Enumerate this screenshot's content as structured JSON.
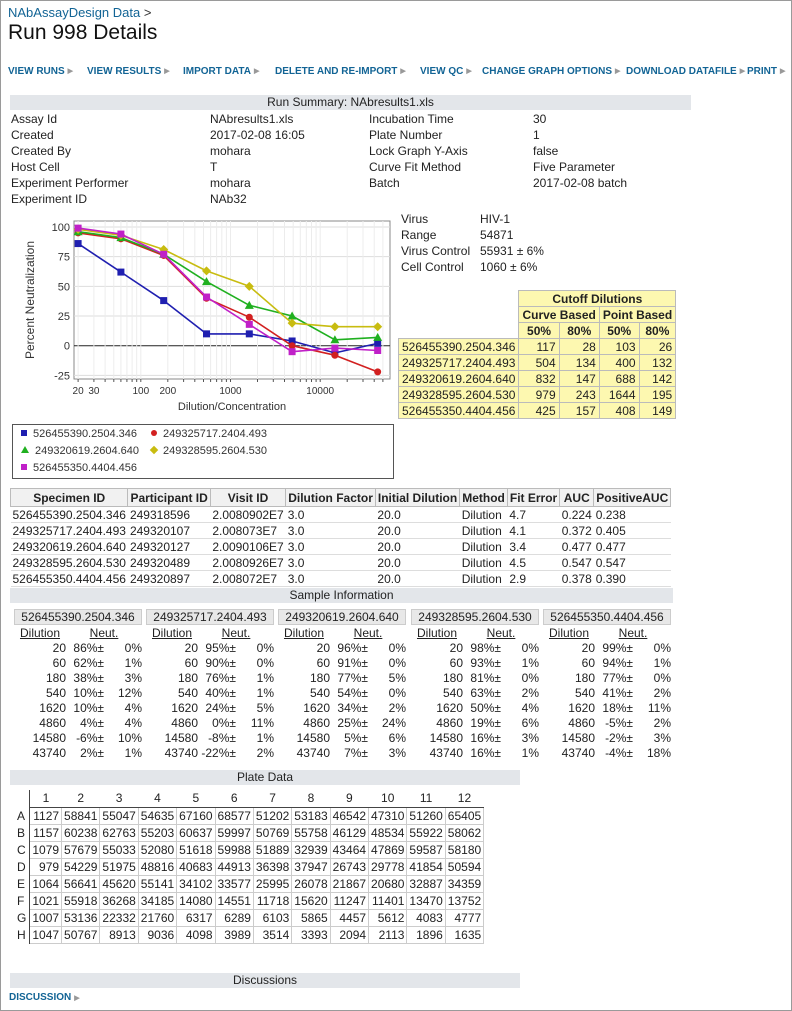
{
  "breadcrumb": {
    "link": "NAbAssayDesign Data",
    "sep": ">"
  },
  "page_title": "Run 998 Details",
  "menu": [
    "VIEW RUNS",
    "VIEW RESULTS",
    "IMPORT DATA",
    "DELETE AND RE-IMPORT",
    "VIEW QC",
    "CHANGE GRAPH OPTIONS",
    "DOWNLOAD DATAFILE",
    "PRINT"
  ],
  "run_summary": {
    "title": "Run Summary: NAbresults1.xls",
    "left": [
      {
        "label": "Assay Id",
        "value": "NAbresults1.xls"
      },
      {
        "label": "Created",
        "value": "2017-02-08 16:05"
      },
      {
        "label": "Created By",
        "value": "mohara"
      },
      {
        "label": "Host Cell",
        "value": "T"
      },
      {
        "label": "Experiment Performer",
        "value": "mohara"
      },
      {
        "label": "Experiment ID",
        "value": "NAb32"
      }
    ],
    "right": [
      {
        "label": "Incubation Time",
        "value": "30"
      },
      {
        "label": "Plate Number",
        "value": "1"
      },
      {
        "label": "Lock Graph Y-Axis",
        "value": "false"
      },
      {
        "label": "Curve Fit Method",
        "value": "Five Parameter"
      },
      {
        "label": "Batch",
        "value": "2017-02-08 batch"
      }
    ]
  },
  "virus_info": [
    {
      "label": "Virus",
      "value": "HIV-1"
    },
    {
      "label": "Range",
      "value": "54871"
    },
    {
      "label": "Virus Control",
      "value": "55931 ± 6%"
    },
    {
      "label": "Cell Control",
      "value": "1060 ± 6%"
    }
  ],
  "chart_data": {
    "type": "scatter",
    "xlabel": "Dilution/Concentration",
    "ylabel": "Percent Neutralization",
    "x_scale": "log",
    "xlim": [
      18,
      60000
    ],
    "ylim": [
      -28,
      105
    ],
    "x_ticks": [
      "20",
      "30",
      "100",
      "200",
      "1000",
      "10000"
    ],
    "y_ticks": [
      "100",
      "75",
      "50",
      "25",
      "0",
      "-25"
    ],
    "grid": true,
    "legend_position": "bottom",
    "x": [
      20,
      60,
      180,
      540,
      1620,
      4860,
      14580,
      43740
    ],
    "series": [
      {
        "name": "526455390.2504.346",
        "color": "#1f1fb0",
        "marker": "square",
        "values": [
          86,
          62,
          38,
          10,
          10,
          4,
          -6,
          2
        ]
      },
      {
        "name": "249325717.2404.493",
        "color": "#d22020",
        "marker": "circle",
        "values": [
          95,
          90,
          76,
          40,
          24,
          0,
          -8,
          -22
        ]
      },
      {
        "name": "249320619.2604.640",
        "color": "#20b020",
        "marker": "triangle",
        "values": [
          96,
          91,
          77,
          54,
          34,
          25,
          5,
          7
        ]
      },
      {
        "name": "249328595.2604.530",
        "color": "#c8bc10",
        "marker": "diamond",
        "values": [
          98,
          93,
          81,
          63,
          50,
          19,
          16,
          16
        ]
      },
      {
        "name": "526455350.4404.456",
        "color": "#c020c8",
        "marker": "square",
        "values": [
          99,
          94,
          77,
          41,
          18,
          -5,
          -2,
          -4
        ]
      }
    ]
  },
  "cutoff": {
    "title": "Cutoff Dilutions",
    "groups": [
      "Curve Based",
      "Point Based"
    ],
    "cols": [
      "50%",
      "80%",
      "50%",
      "80%"
    ],
    "rows": [
      {
        "id": "526455390.2504.346",
        "vals": [
          "117",
          "28",
          "103",
          "26"
        ]
      },
      {
        "id": "249325717.2404.493",
        "vals": [
          "504",
          "134",
          "400",
          "132"
        ]
      },
      {
        "id": "249320619.2604.640",
        "vals": [
          "832",
          "147",
          "688",
          "142"
        ]
      },
      {
        "id": "249328595.2604.530",
        "vals": [
          "979",
          "243",
          "1644",
          "195"
        ]
      },
      {
        "id": "526455350.4404.456",
        "vals": [
          "425",
          "157",
          "408",
          "149"
        ]
      }
    ]
  },
  "results": {
    "headers": [
      "Specimen ID",
      "Participant ID",
      "Visit ID",
      "Dilution Factor",
      "Initial Dilution",
      "Method",
      "Fit Error",
      "AUC",
      "PositiveAUC"
    ],
    "rows": [
      [
        "526455390.2504.346",
        "249318596",
        "2.0080902E7",
        "3.0",
        "20.0",
        "Dilution",
        "4.7",
        "0.224",
        "0.238"
      ],
      [
        "249325717.2404.493",
        "249320107",
        "2.008073E7",
        "3.0",
        "20.0",
        "Dilution",
        "4.1",
        "0.372",
        "0.405"
      ],
      [
        "249320619.2604.640",
        "249320127",
        "2.0090106E7",
        "3.0",
        "20.0",
        "Dilution",
        "3.4",
        "0.477",
        "0.477"
      ],
      [
        "249328595.2604.530",
        "249320489",
        "2.0080926E7",
        "3.0",
        "20.0",
        "Dilution",
        "4.5",
        "0.547",
        "0.547"
      ],
      [
        "526455350.4404.456",
        "249320897",
        "2.008072E7",
        "3.0",
        "20.0",
        "Dilution",
        "2.9",
        "0.378",
        "0.390"
      ]
    ]
  },
  "sample_info": {
    "title": "Sample Information",
    "dil_header": "Dilution",
    "neut_header": "Neut.",
    "samples": [
      {
        "id": "526455390.2504.346",
        "rows": [
          [
            "20",
            "86%±",
            "0%"
          ],
          [
            "60",
            "62%±",
            "1%"
          ],
          [
            "180",
            "38%±",
            "3%"
          ],
          [
            "540",
            "10%±",
            "12%"
          ],
          [
            "1620",
            "10%±",
            "4%"
          ],
          [
            "4860",
            "4%±",
            "4%"
          ],
          [
            "14580",
            "-6%±",
            "10%"
          ],
          [
            "43740",
            "2%±",
            "1%"
          ]
        ]
      },
      {
        "id": "249325717.2404.493",
        "rows": [
          [
            "20",
            "95%±",
            "0%"
          ],
          [
            "60",
            "90%±",
            "0%"
          ],
          [
            "180",
            "76%±",
            "1%"
          ],
          [
            "540",
            "40%±",
            "1%"
          ],
          [
            "1620",
            "24%±",
            "5%"
          ],
          [
            "4860",
            "0%±",
            "11%"
          ],
          [
            "14580",
            "-8%±",
            "1%"
          ],
          [
            "43740",
            "-22%±",
            "2%"
          ]
        ]
      },
      {
        "id": "249320619.2604.640",
        "rows": [
          [
            "20",
            "96%±",
            "0%"
          ],
          [
            "60",
            "91%±",
            "0%"
          ],
          [
            "180",
            "77%±",
            "5%"
          ],
          [
            "540",
            "54%±",
            "0%"
          ],
          [
            "1620",
            "34%±",
            "2%"
          ],
          [
            "4860",
            "25%±",
            "24%"
          ],
          [
            "14580",
            "5%±",
            "6%"
          ],
          [
            "43740",
            "7%±",
            "3%"
          ]
        ]
      },
      {
        "id": "249328595.2604.530",
        "rows": [
          [
            "20",
            "98%±",
            "0%"
          ],
          [
            "60",
            "93%±",
            "1%"
          ],
          [
            "180",
            "81%±",
            "0%"
          ],
          [
            "540",
            "63%±",
            "2%"
          ],
          [
            "1620",
            "50%±",
            "4%"
          ],
          [
            "4860",
            "19%±",
            "6%"
          ],
          [
            "14580",
            "16%±",
            "3%"
          ],
          [
            "43740",
            "16%±",
            "1%"
          ]
        ]
      },
      {
        "id": "526455350.4404.456",
        "rows": [
          [
            "20",
            "99%±",
            "0%"
          ],
          [
            "60",
            "94%±",
            "1%"
          ],
          [
            "180",
            "77%±",
            "0%"
          ],
          [
            "540",
            "41%±",
            "2%"
          ],
          [
            "1620",
            "18%±",
            "11%"
          ],
          [
            "4860",
            "-5%±",
            "2%"
          ],
          [
            "14580",
            "-2%±",
            "3%"
          ],
          [
            "43740",
            "-4%±",
            "18%"
          ]
        ]
      }
    ]
  },
  "plate": {
    "title": "Plate Data",
    "cols": [
      "1",
      "2",
      "3",
      "4",
      "5",
      "6",
      "7",
      "8",
      "9",
      "10",
      "11",
      "12"
    ],
    "rows": [
      {
        "r": "A",
        "v": [
          "1127",
          "58841",
          "55047",
          "54635",
          "67160",
          "68577",
          "51202",
          "53183",
          "46542",
          "47310",
          "51260",
          "65405"
        ]
      },
      {
        "r": "B",
        "v": [
          "1157",
          "60238",
          "62763",
          "55203",
          "60637",
          "59997",
          "50769",
          "55758",
          "46129",
          "48534",
          "55922",
          "58062"
        ]
      },
      {
        "r": "C",
        "v": [
          "1079",
          "57679",
          "55033",
          "52080",
          "51618",
          "59988",
          "51889",
          "32939",
          "43464",
          "47869",
          "59587",
          "58180"
        ]
      },
      {
        "r": "D",
        "v": [
          "979",
          "54229",
          "51975",
          "48816",
          "40683",
          "44913",
          "36398",
          "37947",
          "26743",
          "29778",
          "41854",
          "50594"
        ]
      },
      {
        "r": "E",
        "v": [
          "1064",
          "56641",
          "45620",
          "55141",
          "34102",
          "33577",
          "25995",
          "26078",
          "21867",
          "20680",
          "32887",
          "34359"
        ]
      },
      {
        "r": "F",
        "v": [
          "1021",
          "55918",
          "36268",
          "34185",
          "14080",
          "14551",
          "11718",
          "15620",
          "11247",
          "11401",
          "13470",
          "13752"
        ]
      },
      {
        "r": "G",
        "v": [
          "1007",
          "53136",
          "22332",
          "21760",
          "6317",
          "6289",
          "6103",
          "5865",
          "4457",
          "5612",
          "4083",
          "4777"
        ]
      },
      {
        "r": "H",
        "v": [
          "1047",
          "50767",
          "8913",
          "9036",
          "4098",
          "3989",
          "3514",
          "3393",
          "2094",
          "2113",
          "1896",
          "1635"
        ]
      }
    ]
  },
  "discussions": {
    "title": "Discussions",
    "link": "DISCUSSION"
  }
}
